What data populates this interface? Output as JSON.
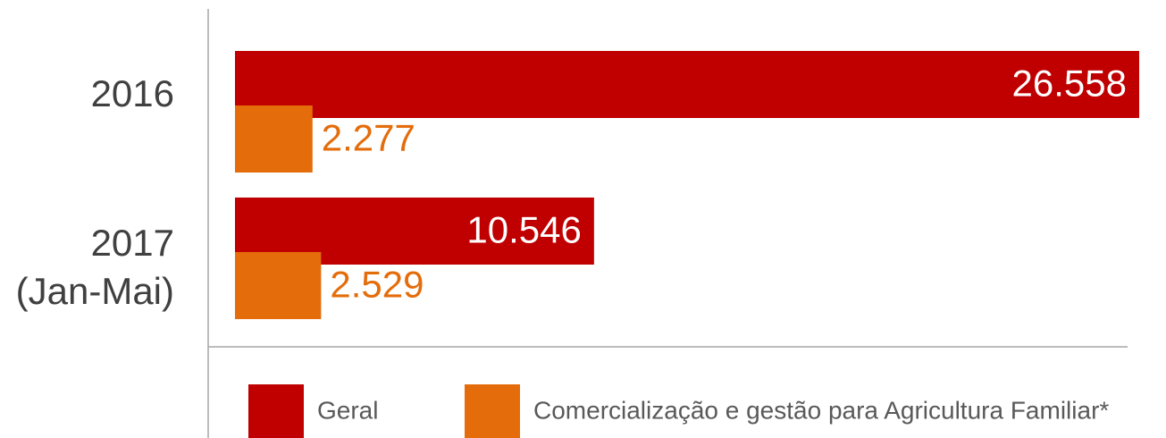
{
  "chart_data": {
    "type": "bar",
    "orientation": "horizontal",
    "categories": [
      "2016",
      "2017\n(Jan-Mai)"
    ],
    "series": [
      {
        "name": "Geral",
        "color": "#c00000",
        "values": [
          26558,
          10546
        ],
        "value_labels": [
          "26.558",
          "10.546"
        ]
      },
      {
        "name": "Comercialização e gestão para Agricultura Familiar*",
        "color": "#e46c0a",
        "values": [
          2277,
          2529
        ],
        "value_labels": [
          "2.277",
          "2.529"
        ]
      }
    ],
    "legend": "bottom"
  }
}
